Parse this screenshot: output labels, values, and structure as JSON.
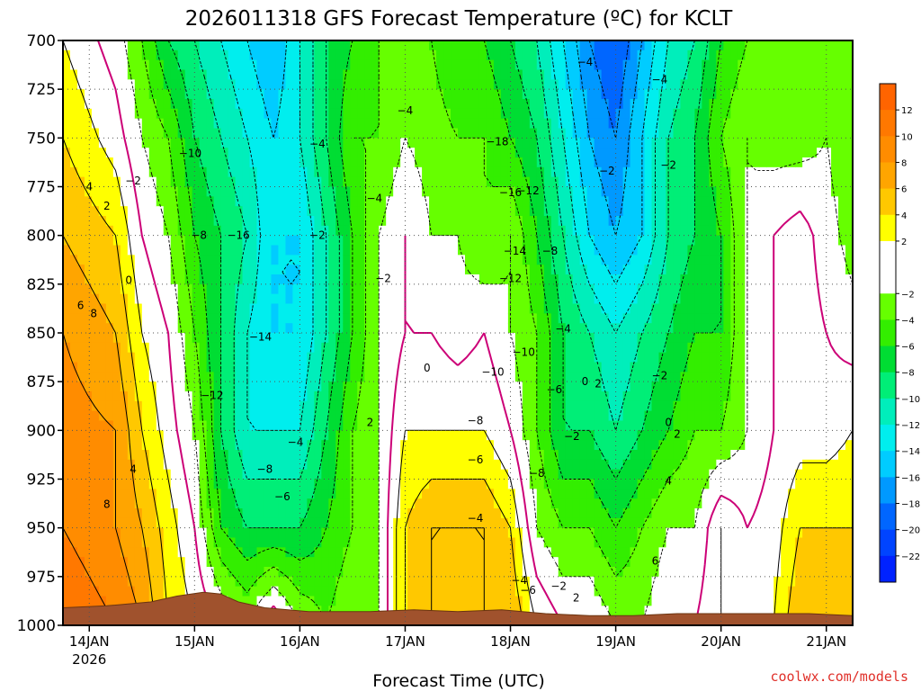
{
  "chart_data": {
    "type": "heatmap",
    "title": "2026011318 GFS Forecast Temperature (ºC) for KCLT",
    "xlabel": "Forecast Time (UTC)",
    "ylabel": "",
    "x_ticks": [
      {
        "label": "14JAN",
        "sub": "2026",
        "hour": 6
      },
      {
        "label": "15JAN",
        "sub": "",
        "hour": 30
      },
      {
        "label": "16JAN",
        "sub": "",
        "hour": 54
      },
      {
        "label": "17JAN",
        "sub": "",
        "hour": 78
      },
      {
        "label": "18JAN",
        "sub": "",
        "hour": 102
      },
      {
        "label": "19JAN",
        "sub": "",
        "hour": 126
      },
      {
        "label": "20JAN",
        "sub": "",
        "hour": 150
      },
      {
        "label": "21JAN",
        "sub": "",
        "hour": 174
      }
    ],
    "xlim_hours": [
      0,
      180
    ],
    "y_ticks": [
      "700",
      "725",
      "750",
      "775",
      "800",
      "825",
      "850",
      "875",
      "900",
      "925",
      "950",
      "975",
      "1000"
    ],
    "ylim_hpa": [
      1000,
      700
    ],
    "grid": true,
    "colorbar": {
      "placement": "right",
      "tick_labels": [
        "12",
        "10",
        "8",
        "6",
        "4",
        "2",
        "-2",
        "-4",
        "-6",
        "-8",
        "-10",
        "-12",
        "-14",
        "-16",
        "-18",
        "-20",
        "-22"
      ],
      "bins": [
        {
          "lo": 12,
          "hi": 14,
          "color": "#ff6400"
        },
        {
          "lo": 10,
          "hi": 12,
          "color": "#ff7800"
        },
        {
          "lo": 8,
          "hi": 10,
          "color": "#ff8c00"
        },
        {
          "lo": 6,
          "hi": 8,
          "color": "#ffa500"
        },
        {
          "lo": 4,
          "hi": 6,
          "color": "#ffc800"
        },
        {
          "lo": 2,
          "hi": 4,
          "color": "#ffff00"
        },
        {
          "lo": -2,
          "hi": 2,
          "color": "#ffffff"
        },
        {
          "lo": -4,
          "hi": -2,
          "color": "#66ff00"
        },
        {
          "lo": -6,
          "hi": -4,
          "color": "#33ee00"
        },
        {
          "lo": -8,
          "hi": -6,
          "color": "#00dd33"
        },
        {
          "lo": -10,
          "hi": -8,
          "color": "#00ee77"
        },
        {
          "lo": -12,
          "hi": -10,
          "color": "#00eebb"
        },
        {
          "lo": -14,
          "hi": -12,
          "color": "#00eeee"
        },
        {
          "lo": -16,
          "hi": -14,
          "color": "#00ccff"
        },
        {
          "lo": -18,
          "hi": -16,
          "color": "#0099ff"
        },
        {
          "lo": -20,
          "hi": -18,
          "color": "#0066ff"
        },
        {
          "lo": -22,
          "hi": -20,
          "color": "#0044ff"
        },
        {
          "lo": -24,
          "hi": -22,
          "color": "#0022ff"
        }
      ]
    },
    "ground_color": "#a0522d",
    "zero_line_color": "#cc0077",
    "series": [
      {
        "name": "Temperature",
        "times_hours": [
          0,
          12,
          18,
          24,
          30,
          36,
          42,
          48,
          54,
          60,
          66,
          72,
          78,
          84,
          90,
          96,
          102,
          108,
          114,
          120,
          126,
          132,
          138,
          144,
          150,
          156,
          162,
          168,
          174,
          180
        ],
        "levels_hpa": [
          700,
          750,
          800,
          850,
          900,
          950,
          1000
        ],
        "temps_c": [
          [
            2,
            -1,
            -4,
            -8,
            -10,
            -12,
            -14,
            -16,
            -12,
            -8,
            -6,
            -4,
            -4,
            -4,
            -6,
            -6,
            -8,
            -10,
            -14,
            -18,
            -20,
            -16,
            -12,
            -10,
            -6,
            -4,
            -4,
            -4,
            -4,
            -4
          ],
          [
            4,
            1,
            -2,
            -4,
            -8,
            -10,
            -12,
            -14,
            -12,
            -8,
            -4,
            -4,
            -2,
            -3,
            -4,
            -4,
            -6,
            -8,
            -12,
            -16,
            -18,
            -14,
            -10,
            -8,
            -4,
            -2,
            -3,
            -3,
            -2,
            -4
          ],
          [
            6,
            4,
            0,
            -2,
            -6,
            -8,
            -10,
            -14,
            -14,
            -10,
            -6,
            -2,
            0,
            -2,
            -2,
            -4,
            -2,
            -6,
            -10,
            -14,
            -16,
            -14,
            -10,
            -8,
            -6,
            -2,
            0,
            1,
            -1,
            -3
          ],
          [
            8,
            6,
            2,
            0,
            -4,
            -8,
            -12,
            -14,
            -14,
            -10,
            -6,
            -2,
            0,
            0,
            -1,
            0,
            -2,
            -4,
            -8,
            -10,
            -12,
            -10,
            -8,
            -6,
            -6,
            -2,
            0,
            1,
            0,
            -1
          ],
          [
            9,
            8,
            4,
            1,
            -2,
            -8,
            -12,
            -12,
            -12,
            -8,
            -4,
            -2,
            2,
            2,
            2,
            2,
            0,
            -4,
            -8,
            -8,
            -10,
            -8,
            -6,
            -4,
            -4,
            -2,
            0,
            1,
            1,
            2
          ],
          [
            10,
            8,
            6,
            3,
            0,
            -6,
            -8,
            -8,
            -8,
            -6,
            -4,
            -2,
            4,
            6,
            6,
            6,
            4,
            -2,
            -4,
            -4,
            -6,
            -4,
            -2,
            -2,
            2,
            0,
            1,
            4,
            4,
            4
          ],
          [
            12,
            10,
            8,
            4,
            2,
            0,
            -2,
            2,
            -2,
            -4,
            -2,
            -2,
            4,
            6,
            4,
            6,
            6,
            2,
            0,
            0,
            -2,
            -2,
            0,
            0,
            2,
            2,
            2,
            6,
            6,
            6
          ]
        ]
      }
    ],
    "contour_labels": [
      {
        "text": "2",
        "hour": 10,
        "hpa": 785
      },
      {
        "text": "4",
        "hour": 6,
        "hpa": 775
      },
      {
        "text": "6",
        "hour": 4,
        "hpa": 836
      },
      {
        "text": "8",
        "hour": 7,
        "hpa": 840
      },
      {
        "text": "8",
        "hour": 10,
        "hpa": 938
      },
      {
        "text": "4",
        "hour": 16,
        "hpa": 920
      },
      {
        "text": "0",
        "hour": 15,
        "hpa": 823
      },
      {
        "text": "-2",
        "hour": 16,
        "hpa": 772
      },
      {
        "text": "-10",
        "hour": 29,
        "hpa": 758
      },
      {
        "text": "-8",
        "hour": 31,
        "hpa": 800
      },
      {
        "text": "-12",
        "hour": 34,
        "hpa": 882
      },
      {
        "text": "-16",
        "hour": 40,
        "hpa": 800
      },
      {
        "text": "-14",
        "hour": 45,
        "hpa": 852
      },
      {
        "text": "-8",
        "hour": 46,
        "hpa": 920
      },
      {
        "text": "-6",
        "hour": 50,
        "hpa": 934
      },
      {
        "text": "-4",
        "hour": 53,
        "hpa": 906
      },
      {
        "text": "-4",
        "hour": 58,
        "hpa": 753
      },
      {
        "text": "-2",
        "hour": 58,
        "hpa": 800
      },
      {
        "text": "-4",
        "hour": 71,
        "hpa": 781
      },
      {
        "text": "-2",
        "hour": 73,
        "hpa": 822
      },
      {
        "text": "-4",
        "hour": 78,
        "hpa": 736
      },
      {
        "text": "2",
        "hour": 70,
        "hpa": 896
      },
      {
        "text": "0",
        "hour": 83,
        "hpa": 868
      },
      {
        "text": "-18",
        "hour": 99,
        "hpa": 752
      },
      {
        "text": "-16",
        "hour": 102,
        "hpa": 778
      },
      {
        "text": "-12",
        "hour": 106,
        "hpa": 777
      },
      {
        "text": "-14",
        "hour": 103,
        "hpa": 808
      },
      {
        "text": "-12",
        "hour": 102,
        "hpa": 822
      },
      {
        "text": "-10",
        "hour": 98,
        "hpa": 870
      },
      {
        "text": "-10",
        "hour": 105,
        "hpa": 860
      },
      {
        "text": "-8",
        "hour": 94,
        "hpa": 895
      },
      {
        "text": "-6",
        "hour": 94,
        "hpa": 915
      },
      {
        "text": "-4",
        "hour": 94,
        "hpa": 945
      },
      {
        "text": "-8",
        "hour": 111,
        "hpa": 808
      },
      {
        "text": "-8",
        "hour": 108,
        "hpa": 922
      },
      {
        "text": "-6",
        "hour": 112,
        "hpa": 879
      },
      {
        "text": "-4",
        "hour": 114,
        "hpa": 848
      },
      {
        "text": "-2",
        "hour": 116,
        "hpa": 903
      },
      {
        "text": "-4",
        "hour": 119,
        "hpa": 711
      },
      {
        "text": "-2",
        "hour": 124,
        "hpa": 767
      },
      {
        "text": "-4",
        "hour": 136,
        "hpa": 720
      },
      {
        "text": "-2",
        "hour": 138,
        "hpa": 764
      },
      {
        "text": "-2",
        "hour": 136,
        "hpa": 872
      },
      {
        "text": "0",
        "hour": 119,
        "hpa": 875
      },
      {
        "text": "2",
        "hour": 122,
        "hpa": 876
      },
      {
        "text": "0",
        "hour": 138,
        "hpa": 896
      },
      {
        "text": "2",
        "hour": 140,
        "hpa": 902
      },
      {
        "text": "4",
        "hour": 138,
        "hpa": 926
      },
      {
        "text": "6",
        "hour": 135,
        "hpa": 967
      },
      {
        "text": "2",
        "hour": 117,
        "hpa": 986
      },
      {
        "text": "-2",
        "hour": 113,
        "hpa": 980
      },
      {
        "text": "-4",
        "hour": 104,
        "hpa": 977
      },
      {
        "text": "-6",
        "hour": 106,
        "hpa": 982
      }
    ]
  },
  "credit": "coolwx.com/models"
}
